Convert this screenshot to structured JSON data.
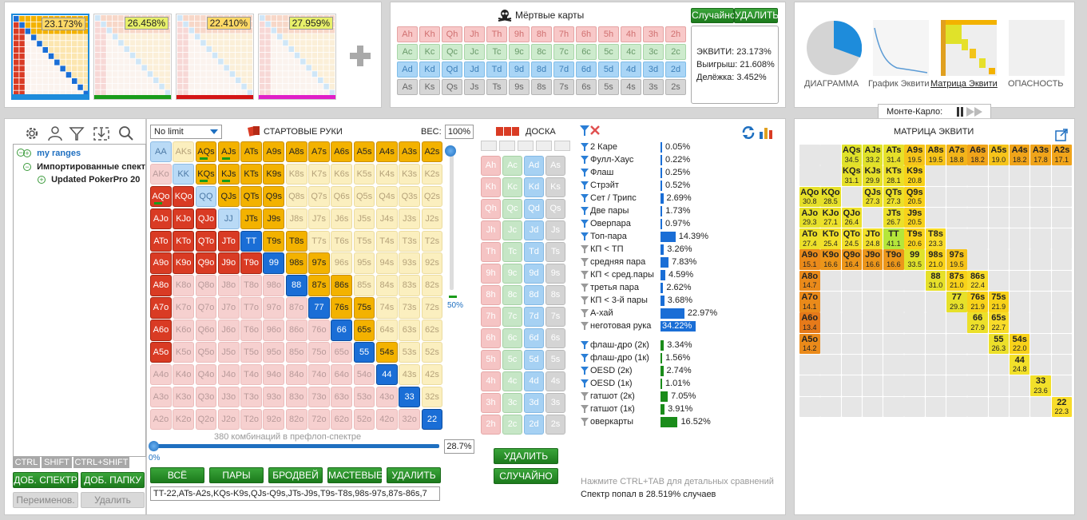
{
  "ranges": [
    {
      "pct": "23.173%",
      "pct_bg": "#ffd966",
      "bar": "#1e8cdb"
    },
    {
      "pct": "26.458%",
      "pct_bg": "#e8f06a",
      "bar": "#1a9c1a"
    },
    {
      "pct": "22.410%",
      "pct_bg": "#ffd966",
      "bar": "#d41414"
    },
    {
      "pct": "27.959%",
      "pct_bg": "#e8f06a",
      "bar": "#e01fc7"
    }
  ],
  "dead": {
    "title": "Мёртвые карты",
    "random": "Случайно",
    "delete": "УДАЛИТЬ",
    "ranks": [
      "A",
      "K",
      "Q",
      "J",
      "T",
      "9",
      "8",
      "7",
      "6",
      "5",
      "4",
      "3",
      "2"
    ],
    "suits": [
      "h",
      "c",
      "d",
      "s"
    ]
  },
  "equity_box": {
    "e": "ЭКВИТИ: 23.173%",
    "w": "Выигрыш: 21.608%",
    "t": "Делёжка: 3.452%"
  },
  "charts": {
    "diagram": "ДИАГРАММА",
    "graph": "График Эквити",
    "matrix": "Матрица Эквити",
    "danger": "ОПАСНОСТЬ",
    "montecarlo": "Монте-Карло:"
  },
  "tree": {
    "root": "my ranges",
    "imported": "Импортированные спект",
    "updated": "Updated PokerPro 20"
  },
  "mods": [
    "CTRL",
    "SHIFT",
    "CTRL+SHIFT"
  ],
  "left_buttons": {
    "add_range": "ДОБ. СПЕКТР",
    "add_folder": "ДОБ. ПАПКУ",
    "rename": "Переименов.",
    "delete": "Удалить"
  },
  "hands_panel": {
    "limit": "No limit",
    "title": "СТАРТОВЫЕ РУКИ",
    "weight_label": "ВЕС:",
    "weight": "100%",
    "combos": "380 комбинаций в префлоп-спектре",
    "pct": "28.7%",
    "slider_min": "0%",
    "slider_v": "50%",
    "buttons": [
      "ВСЁ",
      "ПАРЫ",
      "БРОДВЕЙ",
      "МАСТЕВЫЕ",
      "УДАЛИТЬ"
    ],
    "range_text": "TT-22,ATs-A2s,KQs-K9s,QJs-Q9s,JTs-J9s,T9s-T8s,98s-97s,87s-86s,7"
  },
  "board": {
    "title": "ДОСКА",
    "delete": "УДАЛИТЬ",
    "random": "СЛУЧАЙНО"
  },
  "stats": [
    {
      "l": "2 Каре",
      "v": "0.05%",
      "f": 0.0,
      "col": "#1a6ed6",
      "fi": "#2a7ed6"
    },
    {
      "l": "Фулл-Хаус",
      "v": "0.22%",
      "f": 0.002,
      "col": "#1a6ed6",
      "fi": "#2a7ed6"
    },
    {
      "l": "Флаш",
      "v": "0.25%",
      "f": 0.003,
      "col": "#1a6ed6",
      "fi": "#2a7ed6"
    },
    {
      "l": "Стрэйт",
      "v": "0.52%",
      "f": 0.005,
      "col": "#1a6ed6",
      "fi": "#2a7ed6"
    },
    {
      "l": "Сет / Трипс",
      "v": "2.69%",
      "f": 0.027,
      "col": "#1a6ed6",
      "fi": "#2a7ed6"
    },
    {
      "l": "Две пары",
      "v": "1.73%",
      "f": 0.017,
      "col": "#1a6ed6",
      "fi": "#2a7ed6"
    },
    {
      "l": "Оверпара",
      "v": "0.97%",
      "f": 0.01,
      "col": "#1a6ed6",
      "fi": "#2a7ed6"
    },
    {
      "l": "Топ-пара",
      "v": "14.39%",
      "f": 0.144,
      "col": "#1a6ed6",
      "fi": "#2a7ed6"
    },
    {
      "l": "КП < ТП",
      "v": "3.26%",
      "f": 0.033,
      "col": "#1a6ed6",
      "fi": "#999999"
    },
    {
      "l": "средняя пара",
      "v": "7.83%",
      "f": 0.078,
      "col": "#1a6ed6",
      "fi": "#999999"
    },
    {
      "l": "КП < сред.пары",
      "v": "4.59%",
      "f": 0.046,
      "col": "#1a6ed6",
      "fi": "#999999"
    },
    {
      "l": "третья пара",
      "v": "2.62%",
      "f": 0.026,
      "col": "#1a6ed6",
      "fi": "#999999"
    },
    {
      "l": "КП < 3-й пары",
      "v": "3.68%",
      "f": 0.037,
      "col": "#1a6ed6",
      "fi": "#999999"
    },
    {
      "l": "А-хай",
      "v": "22.97%",
      "f": 0.23,
      "col": "#1a6ed6",
      "fi": "#999999"
    },
    {
      "l": "неготовая рука",
      "v": "34.22%",
      "f": 0.342,
      "col": "#1a6ed6",
      "fi": "#999999"
    },
    {
      "l": "флаш-дро (2к)",
      "v": "3.34%",
      "f": 0.033,
      "col": "#1a8c1a",
      "fi": "#2a7ed6"
    },
    {
      "l": "флаш-дро (1к)",
      "v": "1.56%",
      "f": 0.016,
      "col": "#1a8c1a",
      "fi": "#2a7ed6"
    },
    {
      "l": "OESD (2к)",
      "v": "2.74%",
      "f": 0.027,
      "col": "#1a8c1a",
      "fi": "#2a7ed6"
    },
    {
      "l": "OESD (1к)",
      "v": "1.01%",
      "f": 0.01,
      "col": "#1a8c1a",
      "fi": "#2a7ed6"
    },
    {
      "l": "гатшот (2к)",
      "v": "7.05%",
      "f": 0.07,
      "col": "#1a8c1a",
      "fi": "#999999"
    },
    {
      "l": "гатшот (1к)",
      "v": "3.91%",
      "f": 0.039,
      "col": "#1a8c1a",
      "fi": "#999999"
    },
    {
      "l": "оверкарты",
      "v": "16.52%",
      "f": 0.165,
      "col": "#1a8c1a",
      "fi": "#999999"
    }
  ],
  "hint": "Нажмите CTRL+TAB для детальных сравнений",
  "hit": "Спектр попал в 28.519% случаев",
  "eq_title": "МАТРИЦА ЭКВИТИ",
  "eq_cells": [
    [
      "",
      "",
      "AQs|34.5|#e0e22a",
      "AJs|33.2|#e0e22a",
      "ATs|31.4|#e6e02a",
      "A9s|19.5|#f6c41a",
      "A8s|19.5|#f6c41a",
      "A7s|18.8|#f3b41a",
      "A6s|18.2|#f0a41a",
      "A5s|19.0|#f6c41a",
      "A4s|18.2|#f0a41a",
      "A3s|17.8|#f0a41a",
      "A2s|17.1|#f0a41a"
    ],
    [
      "",
      "",
      "KQs|31.1|#e6e02a",
      "KJs|29.9|#e6e02a",
      "KTs|28.1|#ece02a",
      "K9s|20.8|#f8d21a",
      "",
      "",
      "",
      "",
      "",
      "",
      ""
    ],
    [
      "AQo|30.8|#e6e02a",
      "KQo|28.5|#e6e02a",
      "",
      "QJs|27.3|#ece02a",
      "QTs|27.3|#ece02a",
      "Q9s|20.5|#f8d21a",
      "",
      "",
      "",
      "",
      "",
      "",
      ""
    ],
    [
      "AJo|29.3|#e6e02a",
      "KJo|27.1|#ece02a",
      "QJo|26.4|#ece02a",
      "",
      "JTs|26.7|#ece02a",
      "J9s|20.5|#f8d21a",
      "",
      "",
      "",
      "",
      "",
      "",
      ""
    ],
    [
      "ATo|27.4|#ece02a",
      "KTo|25.4|#f2e02a",
      "QTo|24.5|#f2e02a",
      "JTo|24.8|#f2e02a",
      "TT|41.1|#b5e63a",
      "T9s|20.6|#f8d21a",
      "T8s|23.3|#f8dc2a",
      "",
      "",
      "",
      "",
      "",
      ""
    ],
    [
      "A9o|15.1|#ea8a1a",
      "K9o|16.6|#ec961a",
      "Q9o|16.4|#ec961a",
      "J9o|16.6|#ec961a",
      "T9o|16.6|#ec961a",
      "99|33.5|#e0e22a",
      "98s|21.0|#f8d21a",
      "97s|19.5|#f6c41a",
      "",
      "",
      "",
      "",
      ""
    ],
    [
      "A8o|14.7|#ea8a1a",
      "",
      "",
      "",
      "",
      "",
      "88|31.0|#e6e02a",
      "87s|21.0|#f8d21a",
      "86s|22.4|#f8dc2a",
      "",
      "",
      "",
      ""
    ],
    [
      "A7o|14.1|#ea8a1a",
      "",
      "",
      "",
      "",
      "",
      "",
      "77|29.3|#e6e02a",
      "76s|21.9|#f8d21a",
      "75s|21.9|#f8d21a",
      "",
      "",
      ""
    ],
    [
      "A6o|13.4|#e67a1a",
      "",
      "",
      "",
      "",
      "",
      "",
      "",
      "66|27.9|#ece02a",
      "65s|22.7|#f8dc2a",
      "",
      "",
      ""
    ],
    [
      "A5o|14.2|#ea8a1a",
      "",
      "",
      "",
      "",
      "",
      "",
      "",
      "",
      "55|26.3|#ece02a",
      "54s|22.0|#f8d21a",
      "",
      ""
    ],
    [
      "",
      "",
      "",
      "",
      "",
      "",
      "",
      "",
      "",
      "",
      "44|24.8|#f2e02a",
      "",
      ""
    ],
    [
      "",
      "",
      "",
      "",
      "",
      "",
      "",
      "",
      "",
      "",
      "",
      "33|23.6|#f2e02a",
      ""
    ],
    [
      "",
      "",
      "",
      "",
      "",
      "",
      "",
      "",
      "",
      "",
      "",
      "",
      "22|22.3|#f8dc2a"
    ]
  ]
}
